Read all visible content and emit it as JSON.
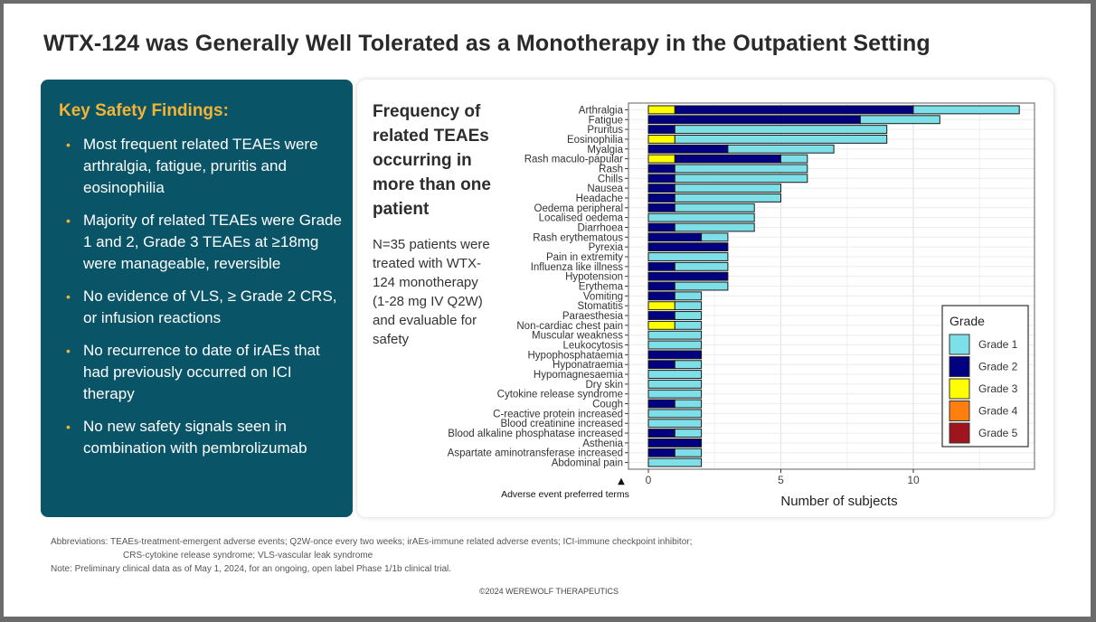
{
  "title": "WTX-124 was Generally Well Tolerated as a Monotherapy in the Outpatient Setting",
  "key_findings": {
    "heading": "Key Safety Findings:",
    "bullets": [
      "Most frequent related TEAEs were arthralgia, fatigue, pruritis and eosinophilia",
      "Majority of related TEAEs were Grade 1 and 2, Grade 3 TEAEs at ≥18mg were manageable, reversible",
      "No evidence of VLS, ≥ Grade 2 CRS, or infusion reactions",
      "No recurrence to date of irAEs that had previously occurred on ICI therapy",
      "No new safety signals seen in combination with pembrolizumab"
    ]
  },
  "chart_panel": {
    "heading": "Frequency of related TEAEs occurring in more than one patient",
    "note": "N=35 patients were treated with WTX-124 monotherapy (1-28 mg IV Q2W) and evaluable for safety"
  },
  "chart_data": {
    "type": "bar",
    "orientation": "horizontal",
    "stacked": true,
    "title": "",
    "xlabel": "Number of subjects",
    "ylabel": "Adverse event preferred terms",
    "ylabel_marker": "▲",
    "xlim": [
      0,
      14.5
    ],
    "xticks": [
      0,
      5,
      10
    ],
    "grid": true,
    "legend": {
      "title": "Grade",
      "position": "bottom-right"
    },
    "colors": {
      "Grade 1": "#7de0e8",
      "Grade 2": "#000080",
      "Grade 3": "#ffff00",
      "Grade 4": "#ff7f0e",
      "Grade 5": "#a0141e"
    },
    "stack_order": [
      "Grade 3",
      "Grade 2",
      "Grade 1"
    ],
    "categories": [
      "Arthralgia",
      "Fatigue",
      "Pruritus",
      "Eosinophilia",
      "Myalgia",
      "Rash maculo-papular",
      "Rash",
      "Chills",
      "Nausea",
      "Headache",
      "Oedema peripheral",
      "Localised oedema",
      "Diarrhoea",
      "Rash erythematous",
      "Pyrexia",
      "Pain in extremity",
      "Influenza like illness",
      "Hypotension",
      "Erythema",
      "Vomiting",
      "Stomatitis",
      "Paraesthesia",
      "Non-cardiac chest pain",
      "Muscular weakness",
      "Leukocytosis",
      "Hypophosphataemia",
      "Hyponatraemia",
      "Hypomagnesaemia",
      "Dry skin",
      "Cytokine release syndrome",
      "Cough",
      "C-reactive protein increased",
      "Blood creatinine increased",
      "Blood alkaline phosphatase increased",
      "Asthenia",
      "Aspartate aminotransferase increased",
      "Abdominal pain"
    ],
    "series": [
      {
        "name": "Grade 1",
        "values": [
          4,
          3,
          8,
          8,
          4,
          1,
          5,
          5,
          4,
          4,
          3,
          4,
          3,
          1,
          0,
          3,
          2,
          0,
          2,
          1,
          1,
          1,
          1,
          2,
          2,
          0,
          1,
          2,
          2,
          2,
          1,
          2,
          2,
          1,
          0,
          1,
          2
        ]
      },
      {
        "name": "Grade 2",
        "values": [
          9,
          8,
          1,
          0,
          3,
          4,
          1,
          1,
          1,
          1,
          1,
          0,
          1,
          2,
          3,
          0,
          1,
          3,
          1,
          1,
          0,
          1,
          0,
          0,
          0,
          2,
          1,
          0,
          0,
          0,
          1,
          0,
          0,
          1,
          2,
          1,
          0
        ]
      },
      {
        "name": "Grade 3",
        "values": [
          1,
          0,
          0,
          1,
          0,
          1,
          0,
          0,
          0,
          0,
          0,
          0,
          0,
          0,
          0,
          0,
          0,
          0,
          0,
          0,
          1,
          0,
          1,
          0,
          0,
          0,
          0,
          0,
          0,
          0,
          0,
          0,
          0,
          0,
          0,
          0,
          0
        ]
      },
      {
        "name": "Grade 4",
        "values": [
          0,
          0,
          0,
          0,
          0,
          0,
          0,
          0,
          0,
          0,
          0,
          0,
          0,
          0,
          0,
          0,
          0,
          0,
          0,
          0,
          0,
          0,
          0,
          0,
          0,
          0,
          0,
          0,
          0,
          0,
          0,
          0,
          0,
          0,
          0,
          0,
          0
        ]
      },
      {
        "name": "Grade 5",
        "values": [
          0,
          0,
          0,
          0,
          0,
          0,
          0,
          0,
          0,
          0,
          0,
          0,
          0,
          0,
          0,
          0,
          0,
          0,
          0,
          0,
          0,
          0,
          0,
          0,
          0,
          0,
          0,
          0,
          0,
          0,
          0,
          0,
          0,
          0,
          0,
          0,
          0
        ]
      }
    ]
  },
  "footer": {
    "abbreviations_line1": "Abbreviations:  TEAEs-treatment-emergent adverse events; Q2W-once every two weeks; irAEs-immune related adverse events; ICI-immune checkpoint inhibitor;",
    "abbreviations_line2": "CRS-cytokine release syndrome; VLS-vascular leak syndrome",
    "note": "Note: Preliminary clinical data as of May 1, 2024, for an ongoing, open label Phase 1/1b clinical trial.",
    "copyright": "©2024 WEREWOLF THERAPEUTICS"
  }
}
